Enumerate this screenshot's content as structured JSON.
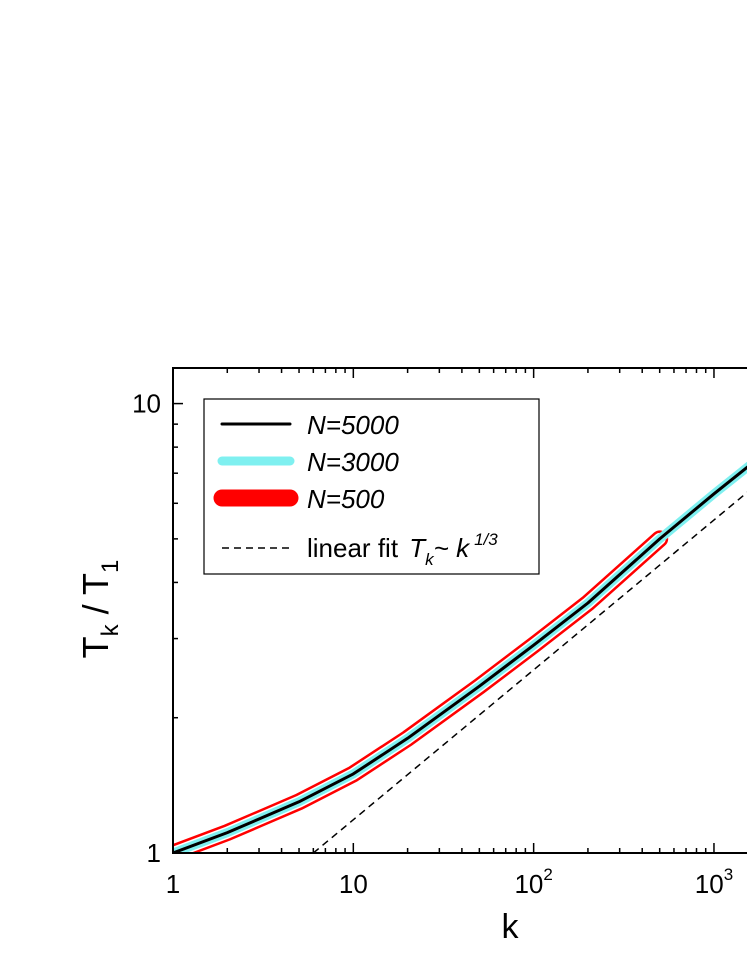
{
  "chart_data": {
    "type": "line",
    "xlabel": "k",
    "ylabel_main": "T",
    "ylabel_sub1": "k",
    "ylabel_sep": " / T",
    "ylabel_sub2": "1",
    "x_scale": "log",
    "y_scale": "log",
    "xlim": [
      1,
      1800
    ],
    "ylim": [
      1,
      12
    ],
    "x_ticks": [
      {
        "value": 1,
        "base": "1",
        "exp": ""
      },
      {
        "value": 10,
        "base": "10",
        "exp": ""
      },
      {
        "value": 100,
        "base": "10",
        "exp": "2"
      },
      {
        "value": 1000,
        "base": "10",
        "exp": "3"
      }
    ],
    "y_ticks": [
      {
        "value": 1,
        "label": "1"
      },
      {
        "value": 10,
        "label": "10"
      }
    ],
    "grid": false,
    "legend_position": "top-left",
    "series": [
      {
        "name": "N=500",
        "style": "thick",
        "color": "#ff0000",
        "x": [
          1,
          2,
          3,
          5,
          10,
          20,
          50,
          100,
          200,
          500
        ],
        "y": [
          1.0,
          1.11,
          1.19,
          1.3,
          1.5,
          1.8,
          2.35,
          2.9,
          3.6,
          5.0
        ]
      },
      {
        "name": "N=3000",
        "style": "medium",
        "color": "#7ff0f0",
        "x": [
          1,
          2,
          3,
          5,
          10,
          20,
          50,
          100,
          200,
          500,
          1000,
          1800
        ],
        "y": [
          1.0,
          1.11,
          1.19,
          1.3,
          1.5,
          1.8,
          2.35,
          2.9,
          3.6,
          5.0,
          6.3,
          7.6
        ]
      },
      {
        "name": "N=5000",
        "style": "thin",
        "color": "#000000",
        "x": [
          1,
          2,
          3,
          5,
          10,
          20,
          50,
          100,
          200,
          500,
          1000,
          1800
        ],
        "y": [
          1.0,
          1.11,
          1.19,
          1.3,
          1.5,
          1.8,
          2.35,
          2.9,
          3.6,
          5.0,
          6.3,
          7.6
        ]
      }
    ],
    "fit": {
      "name_prefix": "linear fit ",
      "name_T": "T",
      "name_sub": "k",
      "name_tilde": "~ k",
      "name_exp": "1/3",
      "color": "#000000",
      "x": [
        6,
        1800
      ],
      "y": [
        1.0,
        6.7
      ]
    }
  }
}
